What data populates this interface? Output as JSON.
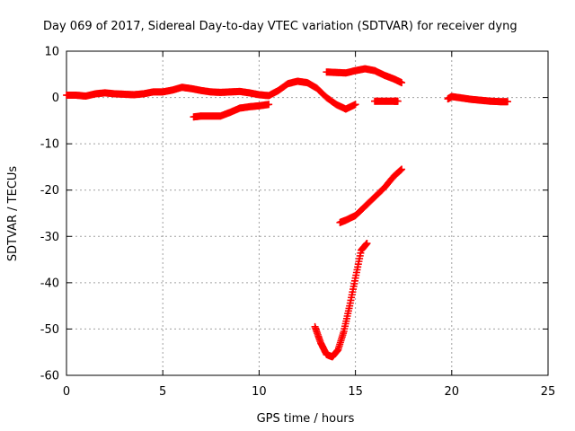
{
  "chart_data": {
    "type": "scatter",
    "title": "Day 069 of 2017, Sidereal Day-to-day VTEC variation (SDTVAR) for receiver dyng",
    "xlabel": "GPS time / hours",
    "ylabel": "SDTVAR / TECUs",
    "xlim": [
      0,
      25
    ],
    "ylim": [
      -60,
      10
    ],
    "x_ticks": [
      0,
      5,
      10,
      15,
      20,
      25
    ],
    "y_ticks": [
      -60,
      -50,
      -40,
      -30,
      -20,
      -10,
      0,
      10
    ],
    "grid": true,
    "legend": "none",
    "marker": "plus",
    "color": "#ff0000",
    "series": [
      {
        "x": [
          0,
          0.5,
          1,
          1.5,
          2,
          2.5,
          3,
          3.5,
          4,
          4.5,
          5,
          5.5,
          6,
          6.5,
          7,
          7.5,
          8,
          8.5,
          9,
          9.5,
          10,
          10.5,
          11,
          11.5,
          12,
          12.5,
          13,
          13.5,
          14,
          14.5,
          15
        ],
        "y": [
          0.5,
          0.5,
          0.3,
          0.8,
          1.0,
          0.8,
          0.7,
          0.6,
          0.8,
          1.2,
          1.2,
          1.6,
          2.2,
          1.9,
          1.5,
          1.2,
          1.1,
          1.2,
          1.3,
          1.0,
          0.6,
          0.4,
          1.5,
          3.0,
          3.5,
          3.2,
          2.0,
          0.0,
          -1.5,
          -2.5,
          -1.5
        ]
      },
      {
        "x": [
          6.6,
          7,
          7.5,
          8,
          8.5,
          9,
          9.5,
          10,
          10.5
        ],
        "y": [
          -4.2,
          -4.0,
          -4.0,
          -4.0,
          -3.2,
          -2.3,
          -2.0,
          -1.8,
          -1.5
        ]
      },
      {
        "x": [
          13.5,
          14,
          14.5,
          15,
          15.5,
          16,
          16.5,
          17,
          17.4
        ],
        "y": [
          5.5,
          5.4,
          5.3,
          5.8,
          6.2,
          5.8,
          4.8,
          4.0,
          3.2
        ]
      },
      {
        "x": [
          16,
          16.5,
          17,
          17.2
        ],
        "y": [
          -0.8,
          -0.8,
          -0.8,
          -0.8
        ]
      },
      {
        "x": [
          19.8,
          20,
          20.5,
          21,
          21.5,
          22,
          22.5,
          22.9
        ],
        "y": [
          -0.3,
          0.2,
          -0.1,
          -0.4,
          -0.6,
          -0.8,
          -0.9,
          -0.9
        ]
      },
      {
        "x": [
          14.2,
          14.5,
          15,
          15.5,
          16,
          16.5,
          17,
          17.4
        ],
        "y": [
          -27,
          -26.5,
          -25.5,
          -23.5,
          -21.5,
          -19.5,
          -17,
          -15.5
        ]
      },
      {
        "x": [
          12.9,
          13.2,
          13.5,
          13.8,
          14.1,
          14.4,
          14.7,
          15.0,
          15.3,
          15.6
        ],
        "y": [
          -49.5,
          -53,
          -55.5,
          -56.0,
          -54.5,
          -50.5,
          -45,
          -39,
          -33,
          -31.5
        ]
      }
    ]
  }
}
